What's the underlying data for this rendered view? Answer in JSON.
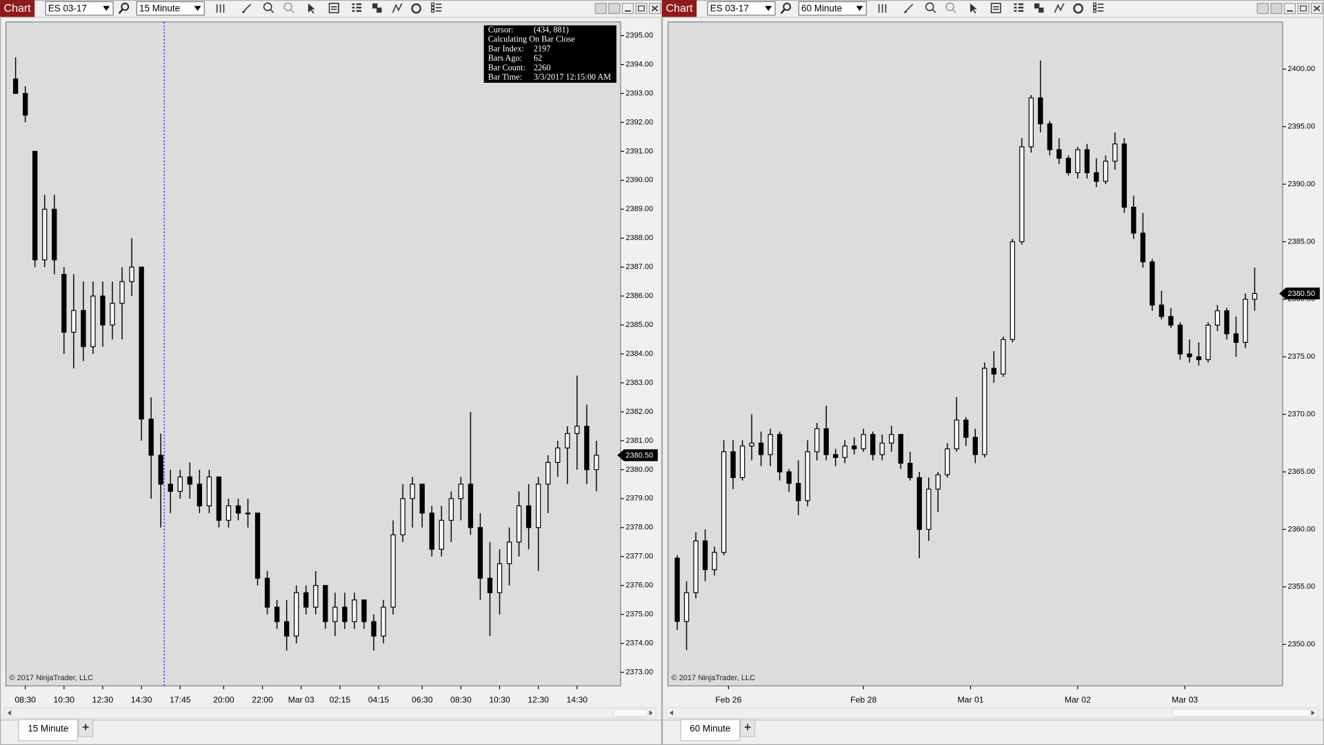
{
  "windows": [
    {
      "badge": "Chart",
      "instrument": "ES 03-17",
      "interval": "15 Minute",
      "tab": "15 Minute",
      "add_tab": "+",
      "copyright": "© 2017 NinjaTrader, LLC",
      "tooltip": [
        [
          "Cursor:",
          "(434, 881)"
        ],
        [
          "Calculating On Bar Close"
        ],
        [
          "Bar Index:",
          "2197"
        ],
        [
          "Bars Ago:",
          "62"
        ],
        [
          "Bar Count:",
          "2260"
        ],
        [
          "Bar  Time:",
          "3/3/2017 12:15:00 AM"
        ]
      ]
    },
    {
      "badge": "Chart",
      "instrument": "ES 03-17",
      "interval": "60 Minute",
      "tab": "60 Minute",
      "add_tab": "+",
      "copyright": "© 2017 NinjaTrader, LLC"
    }
  ],
  "chart_data": [
    {
      "type": "candlestick",
      "background": "#dcdcdc",
      "up_color": "#ffffff",
      "down_color": "#000000",
      "wick_color": "#000000",
      "xlim": [
        -2,
        125
      ],
      "ylim": [
        2372.53,
        2395.47
      ],
      "xticks": [
        {
          "value": 2,
          "label": "08:30"
        },
        {
          "value": 10,
          "label": "10:30"
        },
        {
          "value": 18,
          "label": "12:30"
        },
        {
          "value": 26,
          "label": "14:30"
        },
        {
          "value": 34,
          "label": "17:45"
        },
        {
          "value": 43,
          "label": "20:00"
        },
        {
          "value": 51,
          "label": "22:00"
        },
        {
          "value": 59,
          "label": "Mar 03"
        },
        {
          "value": 67,
          "label": "02:15"
        },
        {
          "value": 75,
          "label": "04:15"
        },
        {
          "value": 84,
          "label": "06:30"
        },
        {
          "value": 92,
          "label": "08:30"
        },
        {
          "value": 100,
          "label": "10:30"
        },
        {
          "value": 108,
          "label": "12:30"
        },
        {
          "value": 116,
          "label": "14:30"
        }
      ],
      "yticks": [
        {
          "value": 2373,
          "label": "2373.00"
        },
        {
          "value": 2374,
          "label": "2374.00"
        },
        {
          "value": 2375,
          "label": "2375.00"
        },
        {
          "value": 2376,
          "label": "2376.00"
        },
        {
          "value": 2377,
          "label": "2377.00"
        },
        {
          "value": 2378,
          "label": "2378.00"
        },
        {
          "value": 2379,
          "label": "2379.00"
        },
        {
          "value": 2380,
          "label": "2380.00"
        },
        {
          "value": 2381,
          "label": "2381.00"
        },
        {
          "value": 2382,
          "label": "2382.00"
        },
        {
          "value": 2383,
          "label": "2383.00"
        },
        {
          "value": 2384,
          "label": "2384.00"
        },
        {
          "value": 2385,
          "label": "2385.00"
        },
        {
          "value": 2386,
          "label": "2386.00"
        },
        {
          "value": 2387,
          "label": "2387.00"
        },
        {
          "value": 2388,
          "label": "2388.00"
        },
        {
          "value": 2389,
          "label": "2389.00"
        },
        {
          "value": 2390,
          "label": "2390.00"
        },
        {
          "value": 2391,
          "label": "2391.00"
        },
        {
          "value": 2392,
          "label": "2392.00"
        },
        {
          "value": 2393,
          "label": "2393.00"
        },
        {
          "value": 2394,
          "label": "2394.00"
        },
        {
          "value": 2395,
          "label": "2395.00"
        }
      ],
      "last_price": {
        "value": 2380.5,
        "label": "2380.50"
      },
      "x": [
        0,
        2,
        4,
        6,
        8,
        10,
        12,
        14,
        16,
        18,
        20,
        22,
        24,
        26,
        28,
        30,
        32,
        34,
        36,
        38,
        40,
        42,
        44,
        46,
        48,
        50,
        52,
        54,
        56,
        58,
        60,
        62,
        64,
        66,
        68,
        70,
        72,
        74,
        76,
        78,
        80,
        82,
        84,
        86,
        88,
        90,
        92,
        94,
        96,
        98,
        100,
        102,
        104,
        106,
        108,
        110,
        112,
        114,
        116,
        118,
        120
      ],
      "ohlc": [
        [
          2393.5,
          2394.25,
          2393,
          2393
        ],
        [
          2393,
          2393.25,
          2392,
          2392.25
        ],
        [
          2391,
          2391,
          2387,
          2387.25
        ],
        [
          2387.25,
          2389.5,
          2387,
          2389
        ],
        [
          2389,
          2389.5,
          2386.75,
          2387.25
        ],
        [
          2386.75,
          2387,
          2384,
          2384.75
        ],
        [
          2384.75,
          2386.75,
          2383.5,
          2385.5
        ],
        [
          2385.5,
          2386.5,
          2383.75,
          2384.25
        ],
        [
          2384.25,
          2386.5,
          2384,
          2386
        ],
        [
          2386,
          2386.5,
          2384.25,
          2385
        ],
        [
          2385,
          2386.5,
          2384.5,
          2385.75
        ],
        [
          2385.75,
          2387,
          2384.5,
          2386.5
        ],
        [
          2386.5,
          2388,
          2386,
          2387
        ],
        [
          2387,
          2387,
          2381,
          2381.75
        ],
        [
          2381.75,
          2382.5,
          2379,
          2380.5
        ],
        [
          2380.5,
          2381.25,
          2378,
          2379.5
        ],
        [
          2379.5,
          2380,
          2378.5,
          2379.25
        ],
        [
          2379.25,
          2380,
          2379,
          2379.75
        ],
        [
          2379.75,
          2380.25,
          2379,
          2379.5
        ],
        [
          2379.5,
          2380,
          2378.5,
          2378.75
        ],
        [
          2378.75,
          2380,
          2378.5,
          2379.75
        ],
        [
          2379.75,
          2379.75,
          2378,
          2378.25
        ],
        [
          2378.25,
          2379,
          2378,
          2378.75
        ],
        [
          2378.75,
          2379,
          2378.25,
          2378.5
        ],
        [
          2378.5,
          2379,
          2378,
          2378.5
        ],
        [
          2378.5,
          2378.5,
          2376,
          2376.25
        ],
        [
          2376.25,
          2376.5,
          2375,
          2375.25
        ],
        [
          2375.25,
          2375.5,
          2374.5,
          2374.75
        ],
        [
          2374.75,
          2375.5,
          2373.75,
          2374.25
        ],
        [
          2374.25,
          2376,
          2374,
          2375.75
        ],
        [
          2375.75,
          2376,
          2375,
          2375.25
        ],
        [
          2375.25,
          2376.5,
          2375,
          2376
        ],
        [
          2376,
          2376,
          2374.5,
          2374.75
        ],
        [
          2374.75,
          2375.75,
          2374.25,
          2375.25
        ],
        [
          2375.25,
          2375.75,
          2374.5,
          2374.75
        ],
        [
          2374.75,
          2375.75,
          2374.5,
          2375.5
        ],
        [
          2375.5,
          2375.5,
          2374.5,
          2374.75
        ],
        [
          2374.75,
          2375,
          2373.75,
          2374.25
        ],
        [
          2374.25,
          2375.5,
          2374,
          2375.25
        ],
        [
          2375.25,
          2378.25,
          2375,
          2377.75
        ],
        [
          2377.75,
          2379.5,
          2377.5,
          2379
        ],
        [
          2379,
          2379.75,
          2378,
          2379.5
        ],
        [
          2379.5,
          2379.5,
          2378,
          2378.5
        ],
        [
          2378.5,
          2378.75,
          2377,
          2377.25
        ],
        [
          2377.25,
          2378.75,
          2377,
          2378.25
        ],
        [
          2378.25,
          2379.25,
          2377.5,
          2379
        ],
        [
          2379,
          2379.75,
          2378.25,
          2379.5
        ],
        [
          2379.5,
          2382,
          2377.75,
          2378
        ],
        [
          2378,
          2378.5,
          2375.5,
          2376.25
        ],
        [
          2376.25,
          2377.5,
          2374.25,
          2375.75
        ],
        [
          2375.75,
          2377.25,
          2375,
          2376.75
        ],
        [
          2376.75,
          2378,
          2376,
          2377.5
        ],
        [
          2377.5,
          2379.25,
          2377,
          2378.75
        ],
        [
          2378.75,
          2379.5,
          2377.25,
          2378
        ],
        [
          2378,
          2379.75,
          2376.5,
          2379.5
        ],
        [
          2379.5,
          2380.5,
          2378.5,
          2380.25
        ],
        [
          2380.25,
          2381,
          2379.75,
          2380.75
        ],
        [
          2380.75,
          2381.5,
          2379.5,
          2381.25
        ],
        [
          2381.25,
          2383.25,
          2380,
          2381.5
        ],
        [
          2381.5,
          2382.25,
          2379.5,
          2380
        ],
        [
          2380,
          2381,
          2379.25,
          2380.5
        ]
      ]
    },
    {
      "type": "candlestick",
      "background": "#dcdcdc",
      "up_color": "#ffffff",
      "down_color": "#000000",
      "wick_color": "#000000",
      "xlim": [
        -2,
        130
      ],
      "ylim": [
        2346.4,
        2404.1
      ],
      "xticks": [
        {
          "value": 11,
          "label": "Feb 26"
        },
        {
          "value": 40,
          "label": "Feb 28"
        },
        {
          "value": 63,
          "label": "Mar 01"
        },
        {
          "value": 86,
          "label": "Mar 02"
        },
        {
          "value": 109,
          "label": "Mar 03"
        }
      ],
      "yticks": [
        {
          "value": 2350,
          "label": "2350.00"
        },
        {
          "value": 2355,
          "label": "2355.00"
        },
        {
          "value": 2360,
          "label": "2360.00"
        },
        {
          "value": 2365,
          "label": "2365.00"
        },
        {
          "value": 2370,
          "label": "2370.00"
        },
        {
          "value": 2375,
          "label": "2375.00"
        },
        {
          "value": 2380,
          "label": "2380.00"
        },
        {
          "value": 2385,
          "label": "2385.00"
        },
        {
          "value": 2390,
          "label": "2390.00"
        },
        {
          "value": 2395,
          "label": "2395.00"
        },
        {
          "value": 2400,
          "label": "2400.00"
        }
      ],
      "last_price": {
        "value": 2380.5,
        "label": "2380.50"
      },
      "x": [
        0,
        2,
        4,
        6,
        8,
        10,
        12,
        14,
        16,
        18,
        20,
        22,
        24,
        26,
        28,
        30,
        32,
        34,
        36,
        38,
        40,
        42,
        44,
        46,
        48,
        50,
        52,
        54,
        56,
        58,
        60,
        62,
        64,
        66,
        68,
        70,
        72,
        74,
        76,
        78,
        80,
        82,
        84,
        86,
        88,
        90,
        92,
        94,
        96,
        98,
        100,
        102,
        104,
        106,
        108,
        110,
        112,
        114,
        116,
        118,
        120,
        122,
        124
      ],
      "ohlc": [
        [
          2357.5,
          2357.75,
          2351.25,
          2352
        ],
        [
          2352,
          2355.5,
          2349.5,
          2354.5
        ],
        [
          2354.5,
          2359.75,
          2354,
          2359
        ],
        [
          2359,
          2360,
          2355.5,
          2356.5
        ],
        [
          2356.5,
          2358.5,
          2356,
          2358
        ],
        [
          2358,
          2367.75,
          2357.75,
          2366.75
        ],
        [
          2366.75,
          2367.75,
          2363.5,
          2364.5
        ],
        [
          2364.5,
          2367.75,
          2364.25,
          2367.25
        ],
        [
          2367.25,
          2370,
          2366,
          2367.5
        ],
        [
          2367.5,
          2368.5,
          2365.5,
          2366.5
        ],
        [
          2366.5,
          2368.75,
          2365.5,
          2368.25
        ],
        [
          2368.25,
          2368.5,
          2364.25,
          2365
        ],
        [
          2365,
          2365.25,
          2363.25,
          2364
        ],
        [
          2364,
          2366,
          2361.25,
          2362.5
        ],
        [
          2362.5,
          2367.75,
          2362,
          2366.75
        ],
        [
          2366.75,
          2369.25,
          2366,
          2368.75
        ],
        [
          2368.75,
          2370.75,
          2366,
          2366.5
        ],
        [
          2366.5,
          2367,
          2365.5,
          2366.25
        ],
        [
          2366.25,
          2367.75,
          2365.75,
          2367.25
        ],
        [
          2367.25,
          2368,
          2366.5,
          2367
        ],
        [
          2367,
          2368.75,
          2366.75,
          2368.25
        ],
        [
          2368.25,
          2368.5,
          2366,
          2366.5
        ],
        [
          2366.5,
          2368.25,
          2366,
          2367.5
        ],
        [
          2367.5,
          2369,
          2366.75,
          2368.25
        ],
        [
          2368.25,
          2368.25,
          2365.25,
          2365.75
        ],
        [
          2365.75,
          2366.75,
          2364.25,
          2364.5
        ],
        [
          2364.5,
          2365,
          2357.5,
          2360
        ],
        [
          2360,
          2364.5,
          2359,
          2363.5
        ],
        [
          2363.5,
          2365,
          2361.5,
          2364.75
        ],
        [
          2364.75,
          2367.5,
          2364.5,
          2367
        ],
        [
          2367,
          2371.5,
          2366.75,
          2369.5
        ],
        [
          2369.5,
          2369.75,
          2367.25,
          2368
        ],
        [
          2368,
          2368.75,
          2365.75,
          2366.5
        ],
        [
          2366.5,
          2374.5,
          2366.25,
          2374
        ],
        [
          2374,
          2375.5,
          2372.75,
          2373.5
        ],
        [
          2373.5,
          2376.75,
          2373.25,
          2376.5
        ],
        [
          2376.5,
          2385.25,
          2376.25,
          2385
        ],
        [
          2385,
          2394,
          2384.75,
          2393.25
        ],
        [
          2393.25,
          2397.75,
          2392.75,
          2397.5
        ],
        [
          2397.5,
          2400.75,
          2394.5,
          2395.25
        ],
        [
          2395.25,
          2395.5,
          2392.5,
          2393
        ],
        [
          2393,
          2394,
          2391.75,
          2392.25
        ],
        [
          2392.25,
          2392.5,
          2390.75,
          2391
        ],
        [
          2391,
          2393.25,
          2390.5,
          2393
        ],
        [
          2393,
          2393.5,
          2390.5,
          2391
        ],
        [
          2391,
          2392.25,
          2389.75,
          2390.25
        ],
        [
          2390.25,
          2392.5,
          2390,
          2392
        ],
        [
          2392,
          2394.5,
          2391.25,
          2393.5
        ],
        [
          2393.5,
          2394,
          2387.5,
          2388
        ],
        [
          2388,
          2389,
          2385.25,
          2385.75
        ],
        [
          2385.75,
          2387.5,
          2382.75,
          2383.25
        ],
        [
          2383.25,
          2383.5,
          2379,
          2379.5
        ],
        [
          2379.5,
          2380.75,
          2378.25,
          2378.5
        ],
        [
          2378.5,
          2379.25,
          2377.5,
          2377.75
        ],
        [
          2377.75,
          2378,
          2374.75,
          2375.25
        ],
        [
          2375.25,
          2376.5,
          2374.5,
          2375
        ],
        [
          2375,
          2376.25,
          2374.25,
          2374.75
        ],
        [
          2374.75,
          2378,
          2374.5,
          2377.75
        ],
        [
          2377.75,
          2379.5,
          2377.25,
          2379
        ],
        [
          2379,
          2379.25,
          2376.5,
          2377
        ],
        [
          2377,
          2378.5,
          2375,
          2376.25
        ],
        [
          2376.25,
          2380.5,
          2375.75,
          2380
        ],
        [
          2380,
          2382.75,
          2379,
          2380.5
        ]
      ]
    }
  ]
}
